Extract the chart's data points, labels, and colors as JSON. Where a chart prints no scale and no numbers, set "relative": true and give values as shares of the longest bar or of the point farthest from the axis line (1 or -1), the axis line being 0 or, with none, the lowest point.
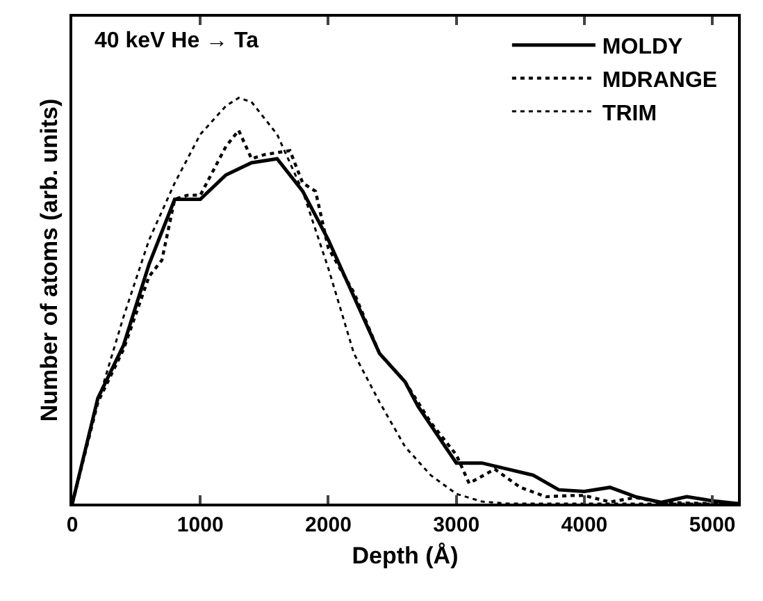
{
  "chart_data": {
    "type": "line",
    "relative": true,
    "xlabel": "Depth (Å)",
    "ylabel": "Number of atoms (arb. units)",
    "annotations": [
      "40 keV He → Ta"
    ],
    "xlim": [
      0,
      5200
    ],
    "xticks": [
      0,
      1000,
      2000,
      3000,
      4000,
      5000
    ],
    "legend": "top right",
    "marker": "none",
    "series": [
      {
        "name": "MOLDY",
        "color": "#000000",
        "line_style": "solid",
        "x": [
          0,
          200,
          400,
          600,
          800,
          1000,
          1200,
          1400,
          1600,
          1800,
          2000,
          2200,
          2400,
          2600,
          2700,
          3000,
          3200,
          3400,
          3600,
          3800,
          4000,
          4200,
          4400,
          4600,
          4800,
          5000,
          5200
        ],
        "values": [
          0,
          0.26,
          0.39,
          0.59,
          0.75,
          0.75,
          0.81,
          0.84,
          0.85,
          0.77,
          0.65,
          0.51,
          0.37,
          0.3,
          0.24,
          0.1,
          0.1,
          0.085,
          0.07,
          0.034,
          0.03,
          0.04,
          0.017,
          0.003,
          0.017,
          0.007,
          0
        ]
      },
      {
        "name": "MDRANGE",
        "color": "#000000",
        "line_style": "dotted",
        "x": [
          0,
          200,
          400,
          600,
          700,
          800,
          900,
          1000,
          1100,
          1200,
          1300,
          1400,
          1500,
          1700,
          1800,
          1900,
          2000,
          2200,
          2400,
          2600,
          2800,
          3000,
          3100,
          3300,
          3500,
          3700,
          3900,
          4000,
          4200,
          4400,
          4600,
          5000,
          5200
        ],
        "values": [
          0,
          0.25,
          0.38,
          0.56,
          0.6,
          0.75,
          0.76,
          0.76,
          0.82,
          0.88,
          0.92,
          0.85,
          0.86,
          0.87,
          0.79,
          0.77,
          0.63,
          0.52,
          0.37,
          0.3,
          0.2,
          0.12,
          0.05,
          0.085,
          0.04,
          0.017,
          0.02,
          0.02,
          0.004,
          0.015,
          0.003,
          0,
          0
        ]
      },
      {
        "name": "TRIM",
        "color": "#000000",
        "line_style": "dotted",
        "x": [
          0,
          200,
          400,
          600,
          800,
          1000,
          1200,
          1300,
          1400,
          1600,
          1800,
          2000,
          2200,
          2400,
          2600,
          2800,
          3000,
          3200,
          3400,
          5200
        ],
        "values": [
          0,
          0.25,
          0.46,
          0.65,
          0.79,
          0.91,
          0.98,
          1.0,
          0.99,
          0.91,
          0.77,
          0.58,
          0.37,
          0.25,
          0.14,
          0.07,
          0.024,
          0.005,
          0,
          0
        ]
      }
    ]
  }
}
